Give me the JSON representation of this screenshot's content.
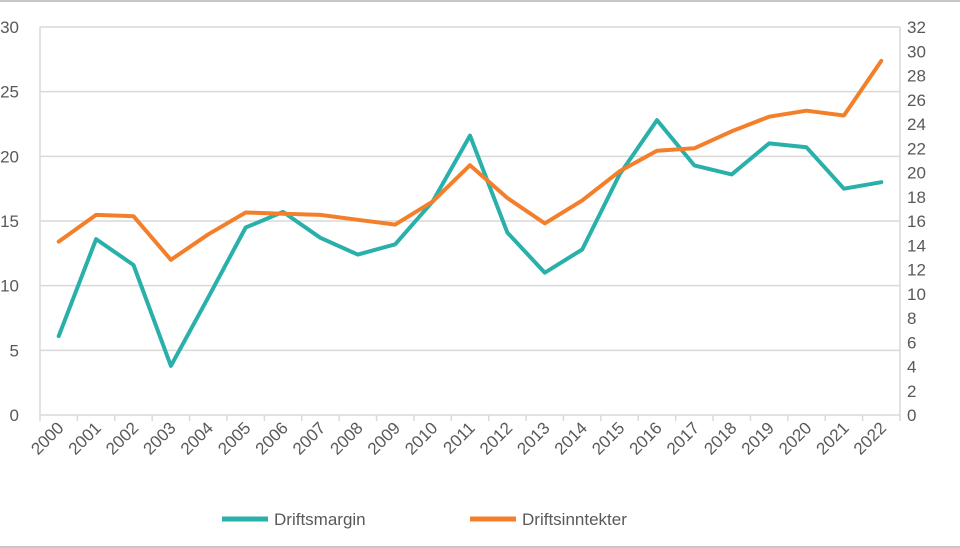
{
  "chart_data": {
    "type": "line",
    "title": "",
    "xlabel": "",
    "ylabel": "",
    "categories": [
      "2000",
      "2001",
      "2002",
      "2003",
      "2004",
      "2005",
      "2006",
      "2007",
      "2008",
      "2009",
      "2010",
      "2011",
      "2012",
      "2013",
      "2014",
      "2015",
      "2016",
      "2017",
      "2018",
      "2019",
      "2020",
      "2021",
      "2022"
    ],
    "y_left": {
      "min": 0,
      "max": 30,
      "ticks": [
        "0",
        "5",
        "10",
        "15",
        "20",
        "25",
        "30"
      ]
    },
    "y_right": {
      "min": 0,
      "max": 32,
      "ticks": [
        "0",
        "2",
        "4",
        "6",
        "8",
        "10",
        "12",
        "14",
        "16",
        "18",
        "20",
        "22",
        "24",
        "26",
        "28",
        "30",
        "32"
      ]
    },
    "grid": true,
    "legend_position": "bottom",
    "series": [
      {
        "name": "Driftsmargin",
        "axis": "left",
        "color": "#2ab0aa",
        "values": [
          6.1,
          13.6,
          11.6,
          3.8,
          9.1,
          14.5,
          15.7,
          13.7,
          12.4,
          13.2,
          16.5,
          21.6,
          14.1,
          11.0,
          12.8,
          18.6,
          22.8,
          19.3,
          18.6,
          21.0,
          20.7,
          17.5,
          18.0
        ]
      },
      {
        "name": "Driftsinntekter",
        "axis": "right",
        "color": "#f47f2a",
        "values": [
          14.3,
          16.5,
          16.4,
          12.8,
          14.9,
          16.7,
          16.6,
          16.5,
          16.1,
          15.7,
          17.6,
          20.6,
          17.9,
          15.8,
          17.7,
          20.1,
          21.8,
          22.0,
          23.4,
          24.6,
          25.1,
          24.7,
          29.2
        ]
      }
    ]
  }
}
